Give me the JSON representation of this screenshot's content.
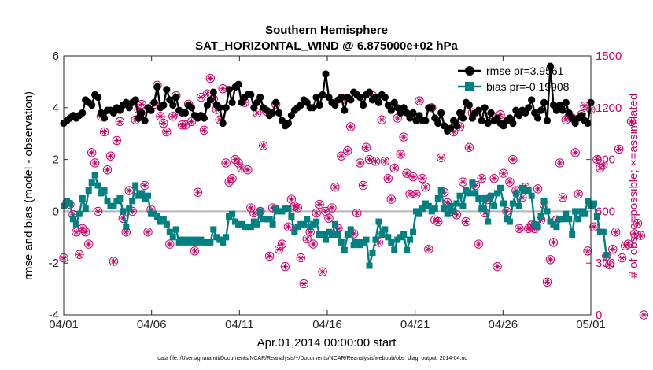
{
  "chart_data": {
    "type": "line",
    "title_line1": "Southern Hemisphere",
    "title_line2": "SAT_HORIZONTAL_WIND @ 6.875000e+02 hPa",
    "xlabel": "Apr.01,2014 00:00:00 start",
    "ylabel_left": "rmse and bias (model - observation)",
    "ylabel_right": "# of obs: o=possible; ×=assimilated",
    "footnote": "data file: /Users/gharamti/Documents/NCAR/Reanalysis/~/Documents/NCAR/Reanalysis/webpub/obs_diag_output_2014-04.nc",
    "x_ticks": [
      "04/01",
      "04/06",
      "04/11",
      "04/16",
      "04/21",
      "04/26",
      "05/01"
    ],
    "xlim": [
      0,
      30
    ],
    "ylim_left": [
      -4,
      6
    ],
    "yticks_left": [
      "-4",
      "-2",
      "0",
      "2",
      "4",
      "6"
    ],
    "ylim_right": [
      0,
      1500
    ],
    "yticks_right": [
      "0",
      "300",
      "600",
      "900",
      "1200",
      "1500"
    ],
    "colors": {
      "rmse": "#000000",
      "bias": "#008080",
      "obs": "#cc0066",
      "zero_line": "#b4b4b4"
    },
    "series": [
      {
        "name": "rmse pr=3.9561",
        "axis": "left",
        "values": [
          3.4,
          3.5,
          3.6,
          3.7,
          3.6,
          3.7,
          3.8,
          4.3,
          4.2,
          4.1,
          4.5,
          4.4,
          3.8,
          3.6,
          3.9,
          3.9,
          3.8,
          4.0,
          3.9,
          4.1,
          4.2,
          4.0,
          4.2,
          4.3,
          3.6,
          3.8,
          3.5,
          4.0,
          3.9,
          4.2,
          4.8,
          4.0,
          4.1,
          4.7,
          4.3,
          4.1,
          4.4,
          3.9,
          3.8,
          3.8,
          4.1,
          4.0,
          3.7,
          3.6,
          3.7,
          3.6,
          4.1,
          4.3,
          4.6,
          4.1,
          4.0,
          3.4,
          4.0,
          4.7,
          4.2,
          4.8,
          4.9,
          4.2,
          4.4,
          4.5,
          4.5,
          4.0,
          4.2,
          4.4,
          4.0,
          3.9,
          3.7,
          3.8,
          4.2,
          3.8,
          3.5,
          3.3,
          3.4,
          3.7,
          3.9,
          4.0,
          4.1,
          4.3,
          4.2,
          4.0,
          4.0,
          4.4,
          4.1,
          4.5,
          5.3,
          4.4,
          4.2,
          4.1,
          4.3,
          4.4,
          3.9,
          4.4,
          4.3,
          4.6,
          4.5,
          4.4,
          4.1,
          4.5,
          4.6,
          4.3,
          4.4,
          4.2,
          4.5,
          4.4,
          4.1,
          3.9,
          4.2,
          4.0,
          3.8,
          4.0,
          3.8,
          3.6,
          3.8,
          3.5,
          3.7,
          3.5,
          3.5,
          4.0,
          4.0,
          3.6,
          3.4,
          3.8,
          3.3,
          3.1,
          3.2,
          3.5,
          3.3,
          3.8,
          3.6,
          4.2,
          4.1,
          3.6,
          3.8,
          3.9,
          3.5,
          4.0,
          3.4,
          3.8,
          3.5,
          3.6,
          3.4,
          3.3,
          3.5,
          3.6,
          3.4,
          3.9,
          3.7,
          3.9,
          3.8,
          4.0,
          4.3,
          3.8,
          3.6,
          3.9,
          4.2,
          3.5,
          5.6,
          4.1,
          3.9,
          4.1,
          3.9,
          4.2,
          3.8,
          3.6,
          3.4,
          3.6,
          3.7,
          3.5,
          3.4,
          4.2
        ]
      },
      {
        "name": "bias pr=-0.19908",
        "axis": "left",
        "values": [
          0.2,
          0.4,
          0.3,
          -0.3,
          -0.5,
          -0.1,
          0.5,
          0.1,
          0.8,
          1.1,
          1.4,
          1.0,
          0.7,
          0.8,
          0.4,
          0.2,
          0.2,
          0.4,
          0.5,
          0.0,
          -0.6,
          0.1,
          0.4,
          1.0,
          0.6,
          0.7,
          0.5,
          0.6,
          -0.1,
          -0.1,
          -0.2,
          -0.4,
          -0.3,
          -0.5,
          -0.8,
          -1.0,
          -0.7,
          -1.2,
          -1.1,
          -1.2,
          -1.1,
          -1.2,
          -1.1,
          -1.2,
          -1.1,
          -1.2,
          -1.2,
          -1.2,
          -0.7,
          -1.0,
          -1.1,
          -1.2,
          -1.0,
          -0.2,
          -0.1,
          -0.4,
          -0.5,
          -0.5,
          -0.6,
          -0.6,
          -0.6,
          -0.4,
          -0.5,
          0.0,
          -0.3,
          -0.3,
          -0.3,
          -0.5,
          0.1,
          0.0,
          0.0,
          0.1,
          0.1,
          -0.2,
          -0.8,
          -0.6,
          -0.5,
          -0.5,
          -0.3,
          -0.6,
          -0.5,
          -0.4,
          -0.9,
          -0.9,
          -1.1,
          -0.8,
          -0.9,
          -0.5,
          -0.9,
          -1.2,
          -1.5,
          -0.9,
          -0.7,
          -1.3,
          -1.2,
          -1.3,
          -1.2,
          -1.1,
          -2.1,
          -1.6,
          -1.1,
          -0.4,
          -0.9,
          -0.7,
          -1.0,
          -1.2,
          -1.5,
          -1.1,
          -1.0,
          -0.9,
          -1.5,
          -1.1,
          -0.8,
          0.0,
          -0.1,
          0.1,
          0.3,
          0.2,
          0.0,
          0.1,
          0.5,
          0.8,
          0.1,
          -0.1,
          0.2,
          0.0,
          0.3,
          0.6,
          0.2,
          0.8,
          0.7,
          1.1,
          0.7,
          0.5,
          0.1,
          0.5,
          -0.4,
          0.6,
          0.2,
          0.7,
          0.9,
          0.3,
          -0.3,
          -0.4,
          0.3,
          0.7,
          0.2,
          0.9,
          0.8,
          0.8,
          0.6,
          -0.5,
          -0.6,
          -0.2,
          0.4,
          0.0,
          -0.4,
          -0.5,
          -0.6,
          -0.3,
          -0.3,
          -0.1,
          -0.3,
          -0.9,
          0.0,
          -0.3,
          0.0,
          -0.1,
          0.4,
          0.2,
          0.3,
          -0.2,
          -0.8,
          -0.8,
          -1.7
        ]
      },
      {
        "name": "obs possible / assimilated",
        "axis": "right",
        "values": [
          330,
          650,
          640,
          580,
          480,
          350,
          500,
          480,
          410,
          940,
          880,
          600,
          1150,
          1060,
          840,
          920,
          310,
          1010,
          1120,
          560,
          480,
          720,
          600,
          1130,
          1190,
          1220,
          750,
          480,
          610,
          1220,
          1330,
          1150,
          1110,
          1060,
          410,
          1150,
          1270,
          1170,
          1100,
          1100,
          1220,
          1120,
          370,
          710,
          1260,
          1070,
          1280,
          1370,
          1250,
          1190,
          1130,
          1310,
          880,
          770,
          790,
          900,
          880,
          850,
          1230,
          840,
          620,
          590,
          1170,
          600,
          980,
          1180,
          340,
          620,
          1220,
          380,
          410,
          280,
          510,
          670,
          630,
          620,
          330,
          180,
          440,
          480,
          410,
          590,
          640,
          250,
          600,
          560,
          620,
          740,
          500,
          920,
          1250,
          950,
          1090,
          470,
          590,
          880,
          750,
          970,
          900,
          1270,
          890,
          420,
          1130,
          890,
          790,
          670,
          850,
          1140,
          930,
          1030,
          820,
          700,
          800,
          700,
          1240,
          790,
          740,
          380,
          1200,
          550,
          540,
          910,
          710,
          650,
          600,
          1060,
          580,
          1090,
          770,
          540,
          970,
          1170,
          750,
          410,
          790,
          590,
          670,
          1160,
          790,
          280,
          1160,
          820,
          600,
          770,
          900,
          720,
          500,
          680,
          740,
          500,
          520,
          500,
          730,
          550,
          640,
          190,
          320,
          420,
          550,
          880,
          680,
          1130,
          1150,
          1140,
          940,
          700,
          1160,
          1210,
          370,
          1190,
          510,
          900,
          850,
          870,
          340,
          290,
          380,
          480,
          960,
          330,
          400,
          410,
          1120,
          470,
          530,
          460,
          0
        ]
      }
    ]
  }
}
